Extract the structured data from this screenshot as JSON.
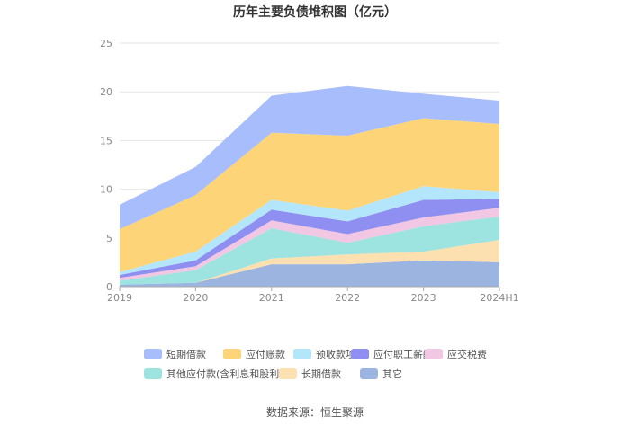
{
  "title": "历年主要负债堆积图（亿元）",
  "source": "数据来源：恒生聚源",
  "chart_data": {
    "type": "area",
    "stacked": true,
    "title": "历年主要负债堆积图（亿元）",
    "categories": [
      "2019",
      "2020",
      "2021",
      "2022",
      "2023",
      "2024H1"
    ],
    "ylim": [
      0,
      25
    ],
    "yticks": [
      0,
      5,
      10,
      15,
      20,
      25
    ],
    "grid": true,
    "legend_position": "bottom",
    "series": [
      {
        "name": "其它",
        "color": "#9bb5e0",
        "values": [
          0.2,
          0.4,
          2.3,
          2.3,
          2.7,
          2.5
        ]
      },
      {
        "name": "长期借款",
        "color": "#fde0b0",
        "values": [
          0,
          0,
          0.6,
          1.0,
          0.9,
          2.3
        ]
      },
      {
        "name": "其他应付款(含利息和股利)",
        "color": "#9de3df",
        "values": [
          0.4,
          1.3,
          3.1,
          1.2,
          2.6,
          2.4
        ]
      },
      {
        "name": "应交税费",
        "color": "#f1c7e3",
        "values": [
          0.3,
          0.4,
          0.8,
          0.9,
          0.9,
          0.9
        ]
      },
      {
        "name": "应付职工薪酬",
        "color": "#8f8ff2",
        "values": [
          0.3,
          0.6,
          1.1,
          1.3,
          1.8,
          0.9
        ]
      },
      {
        "name": "预收款项",
        "color": "#b3e5fb",
        "values": [
          0.3,
          0.9,
          1.0,
          1.1,
          1.4,
          0.7
        ]
      },
      {
        "name": "应付账款",
        "color": "#fed478",
        "values": [
          4.4,
          5.8,
          6.9,
          7.7,
          7.0,
          7.0
        ]
      },
      {
        "name": "短期借款",
        "color": "#a8bdfb",
        "values": [
          2.5,
          2.9,
          3.8,
          5.1,
          2.5,
          2.4
        ]
      }
    ]
  },
  "legend": [
    {
      "label": "短期借款",
      "color": "#a8bdfb"
    },
    {
      "label": "应付账款",
      "color": "#fed478"
    },
    {
      "label": "预收款项",
      "color": "#b3e5fb"
    },
    {
      "label": "应付职工薪酬",
      "color": "#8f8ff2"
    },
    {
      "label": "应交税费",
      "color": "#f1c7e3"
    },
    {
      "label": "其他应付款(含利息和股利)",
      "color": "#9de3df"
    },
    {
      "label": "长期借款",
      "color": "#fde0b0"
    },
    {
      "label": "其它",
      "color": "#9bb5e0"
    }
  ]
}
